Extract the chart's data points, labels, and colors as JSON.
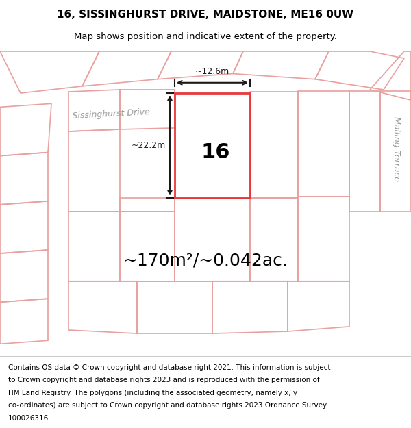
{
  "title": "16, SISSINGHURST DRIVE, MAIDSTONE, ME16 0UW",
  "subtitle": "Map shows position and indicative extent of the property.",
  "area_text": "~170m²/~0.042ac.",
  "width_label": "~12.6m",
  "height_label": "~22.2m",
  "property_number": "16",
  "map_bg_color": "#f0f0f0",
  "highlight_color": "#e8383a",
  "plot_line_color": "#e8a0a0",
  "dim_line_color": "#1a1a1a",
  "road_label_left": "Sissinghurst Drive",
  "road_label_right": "Malling Terrace",
  "title_fontsize": 11,
  "subtitle_fontsize": 9.5,
  "area_fontsize": 18,
  "number_fontsize": 22,
  "footer_fontsize": 7.5,
  "road_label_fontsize": 9,
  "footer_lines": [
    "Contains OS data © Crown copyright and database right 2021. This information is subject",
    "to Crown copyright and database rights 2023 and is reproduced with the permission of",
    "HM Land Registry. The polygons (including the associated geometry, namely x, y",
    "co-ordinates) are subject to Crown copyright and database rights 2023 Ordnance Survey",
    "100026316."
  ]
}
